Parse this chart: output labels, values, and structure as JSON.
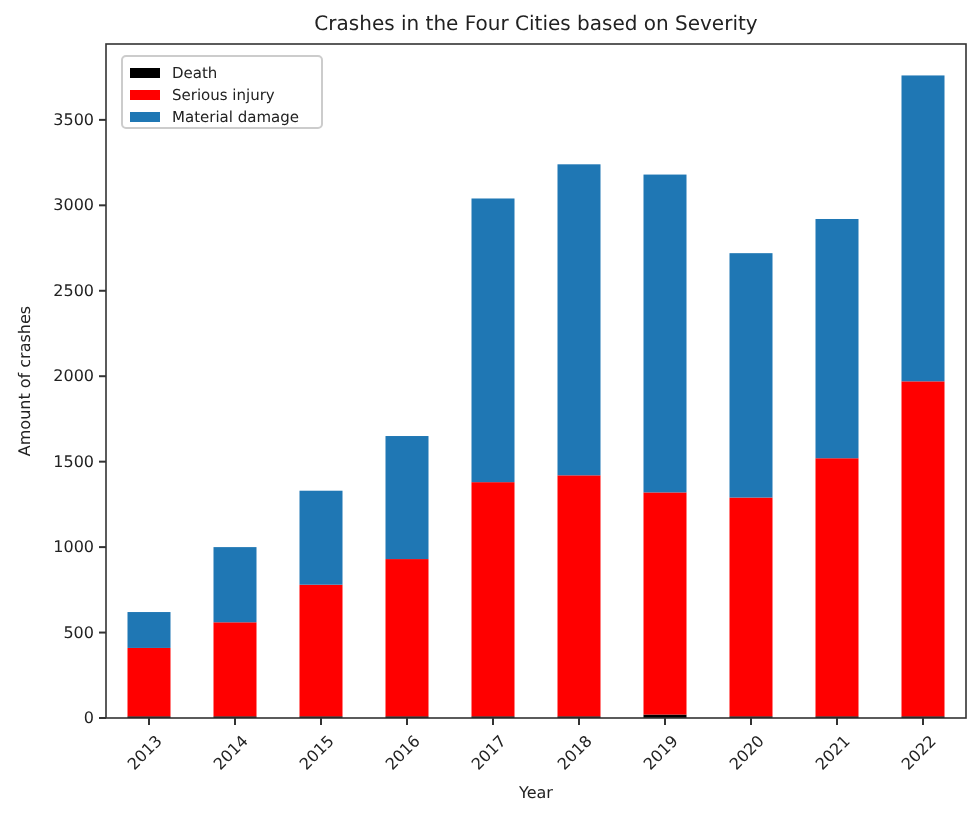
{
  "chart_data": {
    "type": "bar",
    "title": "Crashes in the Four Cities based on Severity",
    "xlabel": "Year",
    "ylabel": "Amount of crashes",
    "categories": [
      "2013",
      "2014",
      "2015",
      "2016",
      "2017",
      "2018",
      "2019",
      "2020",
      "2021",
      "2022"
    ],
    "stacked": true,
    "legend": "top left",
    "ylim": [
      0,
      3944
    ],
    "yticks": [
      0,
      500,
      1000,
      1500,
      2000,
      2500,
      3000,
      3500
    ],
    "series": [
      {
        "name": "Death",
        "color": "#000000",
        "values": [
          10,
          10,
          10,
          10,
          10,
          10,
          20,
          10,
          10,
          10
        ]
      },
      {
        "name": "Serious injury",
        "color": "#ff0000",
        "values": [
          400,
          550,
          770,
          920,
          1370,
          1410,
          1300,
          1280,
          1510,
          1960
        ]
      },
      {
        "name": "Material damage",
        "color": "#1f77b4",
        "values": [
          210,
          440,
          550,
          720,
          1660,
          1820,
          1860,
          1430,
          1400,
          1790
        ]
      }
    ]
  }
}
